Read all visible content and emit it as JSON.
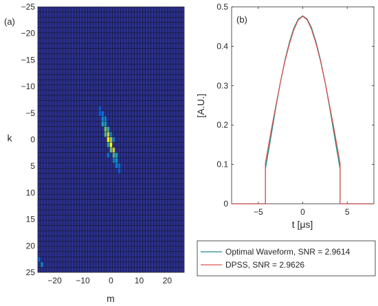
{
  "chart_data": [
    {
      "type": "heatmap",
      "panel_label": "(a)",
      "xlabel": "m",
      "ylabel": "k",
      "xlim": [
        -26,
        26
      ],
      "ylim": [
        -25,
        25
      ],
      "y_reversed": true,
      "xticks": [
        -20,
        -10,
        0,
        10,
        20
      ],
      "yticks": [
        -25,
        -20,
        -15,
        -10,
        -5,
        0,
        5,
        10,
        15,
        20,
        25
      ],
      "colormap": "parula",
      "background_color": "#2a2f8e",
      "cell_edge_color": "#111111",
      "grid": true,
      "hotspots": [
        {
          "m": -3,
          "k": -5,
          "value": 0.25
        },
        {
          "m": -3,
          "k": -4,
          "value": 0.35
        },
        {
          "m": -2,
          "k": -4,
          "value": 0.3
        },
        {
          "m": -3,
          "k": -3,
          "value": 0.5
        },
        {
          "m": -2,
          "k": -3,
          "value": 0.45
        },
        {
          "m": -2,
          "k": -2,
          "value": 0.7
        },
        {
          "m": -1,
          "k": -2,
          "value": 0.55
        },
        {
          "m": -2,
          "k": -1,
          "value": 0.6
        },
        {
          "m": -1,
          "k": -1,
          "value": 0.85
        },
        {
          "m": -1,
          "k": 0,
          "value": 0.95
        },
        {
          "m": 0,
          "k": 0,
          "value": 0.8
        },
        {
          "m": 0,
          "k": 1,
          "value": 1.0
        },
        {
          "m": -1,
          "k": 1,
          "value": 0.5
        },
        {
          "m": 0,
          "k": 2,
          "value": 0.7
        },
        {
          "m": 1,
          "k": 2,
          "value": 0.85
        },
        {
          "m": 1,
          "k": 3,
          "value": 0.6
        },
        {
          "m": 2,
          "k": 3,
          "value": 0.5
        },
        {
          "m": 2,
          "k": 4,
          "value": 0.45
        },
        {
          "m": 1,
          "k": 4,
          "value": 0.3
        },
        {
          "m": 2,
          "k": 5,
          "value": 0.3
        },
        {
          "m": 3,
          "k": 5,
          "value": 0.2
        },
        {
          "m": -4,
          "k": -5,
          "value": 0.15
        },
        {
          "m": 3,
          "k": 6,
          "value": 0.15
        },
        {
          "m": -4,
          "k": -6,
          "value": 0.12
        },
        {
          "m": 0,
          "k": -1,
          "value": 0.3
        },
        {
          "m": -1,
          "k": 3,
          "value": 0.25
        },
        {
          "m": 1,
          "k": 0,
          "value": 0.3
        },
        {
          "m": -26,
          "k": 23,
          "value": 0.15
        },
        {
          "m": -25,
          "k": 24,
          "value": 0.35
        }
      ]
    },
    {
      "type": "line",
      "panel_label": "(b)",
      "xlabel": "t [μs]",
      "ylabel": "[A.U.]",
      "xlim": [
        -8,
        8
      ],
      "ylim": [
        0,
        0.5
      ],
      "xticks": [
        -5,
        0,
        5
      ],
      "yticks": [
        0,
        0.1,
        0.2,
        0.3,
        0.4,
        0.5
      ],
      "grid": false,
      "legend_position": "below-plot",
      "series": [
        {
          "name": "Optimal Waveform, SNR = 2.9614",
          "color": "#1a8a86",
          "x": [
            -8,
            -4.2,
            -4.2,
            -3.5,
            -3,
            -2.5,
            -2,
            -1.5,
            -1,
            -0.5,
            0,
            0.5,
            1,
            1.5,
            2,
            2.5,
            3,
            3.5,
            4.2,
            4.2,
            8
          ],
          "y": [
            0,
            0,
            0.088,
            0.181,
            0.248,
            0.31,
            0.365,
            0.41,
            0.446,
            0.469,
            0.477,
            0.469,
            0.446,
            0.41,
            0.365,
            0.31,
            0.248,
            0.181,
            0.088,
            0,
            0
          ]
        },
        {
          "name": "DPSS, SNR = 2.9626",
          "color": "#d9534f",
          "x": [
            -8,
            -4.2,
            -4.2,
            -3.5,
            -3,
            -2.5,
            -2,
            -1.5,
            -1,
            -0.5,
            0,
            0.5,
            1,
            1.5,
            2,
            2.5,
            3,
            3.5,
            4.2,
            4.2,
            8
          ],
          "y": [
            0,
            0,
            0.103,
            0.192,
            0.252,
            0.31,
            0.362,
            0.406,
            0.442,
            0.467,
            0.476,
            0.467,
            0.442,
            0.406,
            0.362,
            0.31,
            0.252,
            0.192,
            0.103,
            0,
            0
          ]
        }
      ]
    }
  ]
}
